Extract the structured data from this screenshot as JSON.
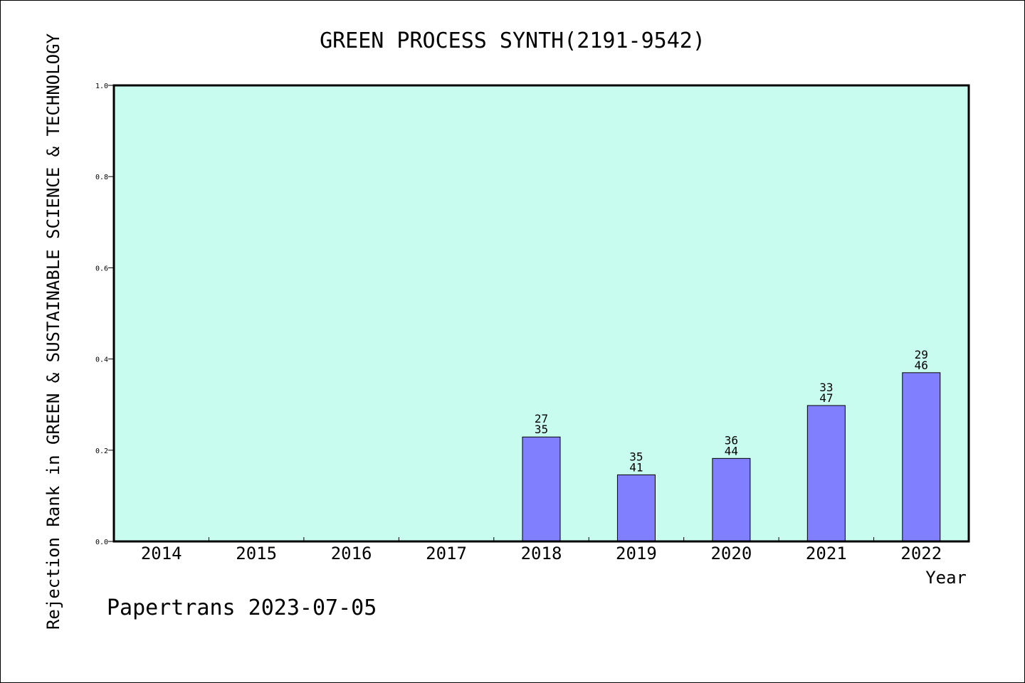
{
  "chart_data": {
    "type": "bar",
    "title": "GREEN PROCESS SYNTH(2191-9542)",
    "xlabel": "Year",
    "ylabel": "Rejection Rank in GREEN & SUSTAINABLE SCIENCE & TECHNOLOGY",
    "ylim": [
      0,
      1.0
    ],
    "yticks": [
      "0.0",
      "0.2",
      "0.4",
      "0.6",
      "0.8",
      "1.0"
    ],
    "categories": [
      "2014",
      "2015",
      "2016",
      "2017",
      "2018",
      "2019",
      "2020",
      "2021",
      "2022"
    ],
    "values": [
      null,
      null,
      null,
      null,
      0.229,
      0.146,
      0.182,
      0.298,
      0.37
    ],
    "labels_top": [
      "",
      "",
      "",
      "",
      "27",
      "35",
      "36",
      "33",
      "29"
    ],
    "labels_bottom": [
      "",
      "",
      "",
      "",
      "35",
      "41",
      "44",
      "47",
      "46"
    ],
    "grid": false,
    "colors": {
      "plot_bg": "#c8fcee",
      "bar": "#8080ff",
      "axis": "#000000"
    }
  },
  "footer": "Papertrans 2023-07-05"
}
